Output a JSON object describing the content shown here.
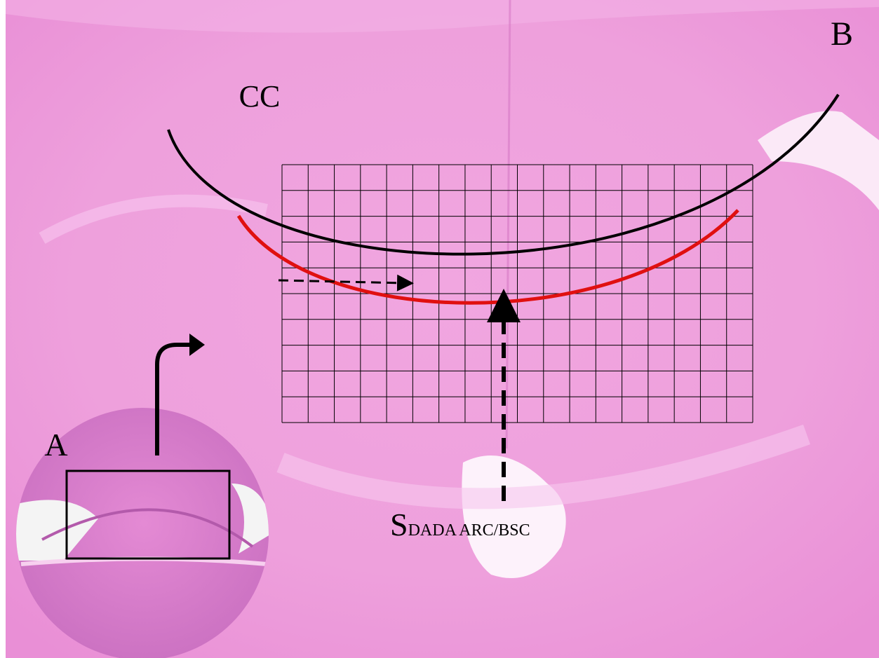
{
  "labels": {
    "panel_b": "B",
    "cc": "CC",
    "panel_a": "A",
    "s_main": "S",
    "s_sub": "DADA ARC/BSC"
  }
}
